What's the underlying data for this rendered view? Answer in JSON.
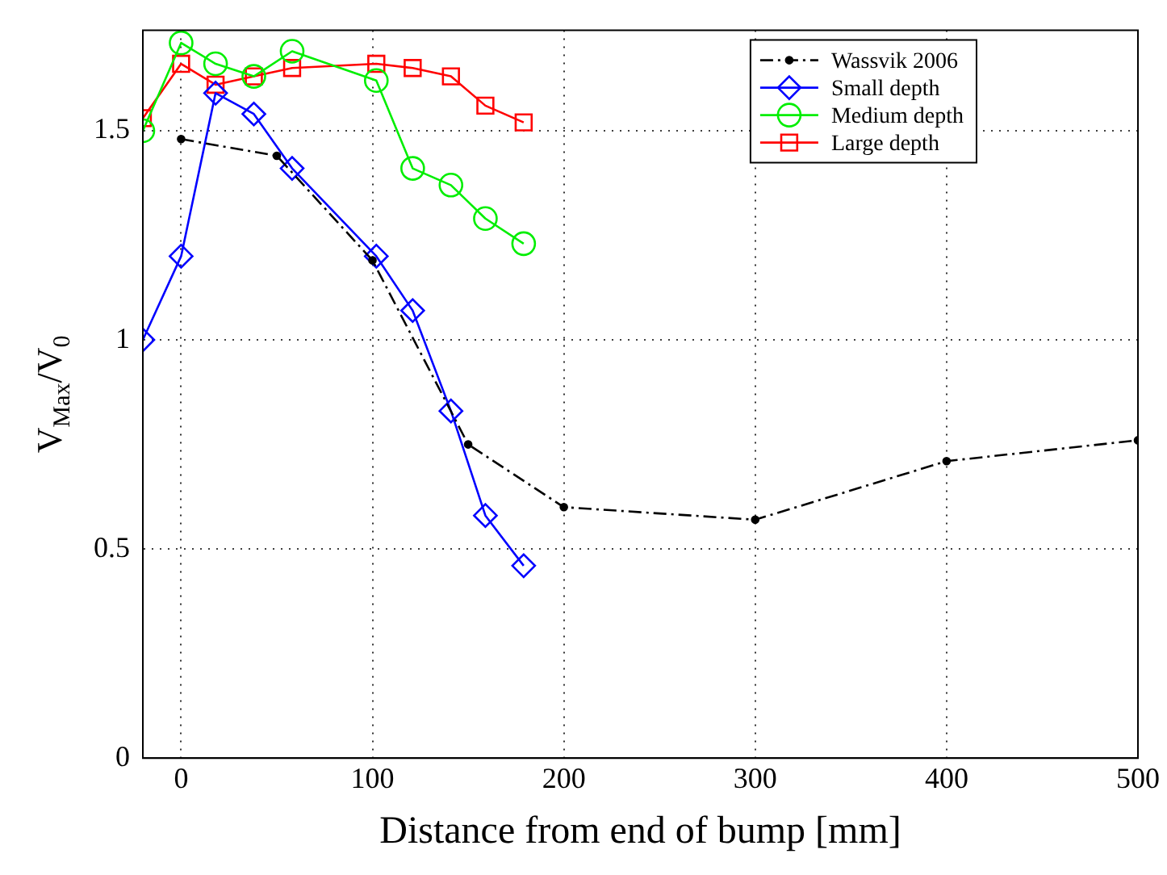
{
  "chart_data": {
    "type": "line",
    "xlabel": "Distance from end of bump [mm]",
    "ylabel": "V$_{Max}$/V$_{0}$",
    "xlim": [
      -20,
      500
    ],
    "xticks": [
      0,
      100,
      200,
      300,
      400,
      500
    ],
    "ylim": [
      0,
      1.74
    ],
    "yticks": [
      0,
      0.5,
      1,
      1.5
    ],
    "grid": true,
    "legend": "top right",
    "series": [
      {
        "name": "Wassvik 2006",
        "color": "#000000",
        "marker": "circle",
        "line_style": "dashed",
        "x": [
          0,
          50,
          100,
          150,
          200,
          300,
          400,
          500
        ],
        "values": [
          1.48,
          1.44,
          1.19,
          0.75,
          0.6,
          0.57,
          0.71,
          0.76
        ]
      },
      {
        "name": "Small depth",
        "color": "#0000ff",
        "marker": "diamond",
        "line_style": "solid",
        "x": [
          -20,
          0,
          18,
          38,
          58,
          102,
          121,
          141,
          159,
          179
        ],
        "values": [
          1.0,
          1.2,
          1.59,
          1.54,
          1.41,
          1.2,
          1.07,
          0.83,
          0.58,
          0.46
        ]
      },
      {
        "name": "Medium depth",
        "color": "#00ee00",
        "marker": "circle",
        "line_style": "solid",
        "x": [
          -20,
          0,
          18,
          38,
          58,
          102,
          121,
          141,
          159,
          179
        ],
        "values": [
          1.5,
          1.71,
          1.66,
          1.63,
          1.69,
          1.62,
          1.41,
          1.37,
          1.29,
          1.23
        ]
      },
      {
        "name": "Large depth",
        "color": "#ff0000",
        "marker": "square",
        "line_style": "solid",
        "x": [
          -20,
          0,
          18,
          38,
          58,
          102,
          121,
          141,
          159,
          179
        ],
        "values": [
          1.53,
          1.66,
          1.61,
          1.63,
          1.65,
          1.66,
          1.65,
          1.63,
          1.56,
          1.52
        ]
      }
    ]
  }
}
